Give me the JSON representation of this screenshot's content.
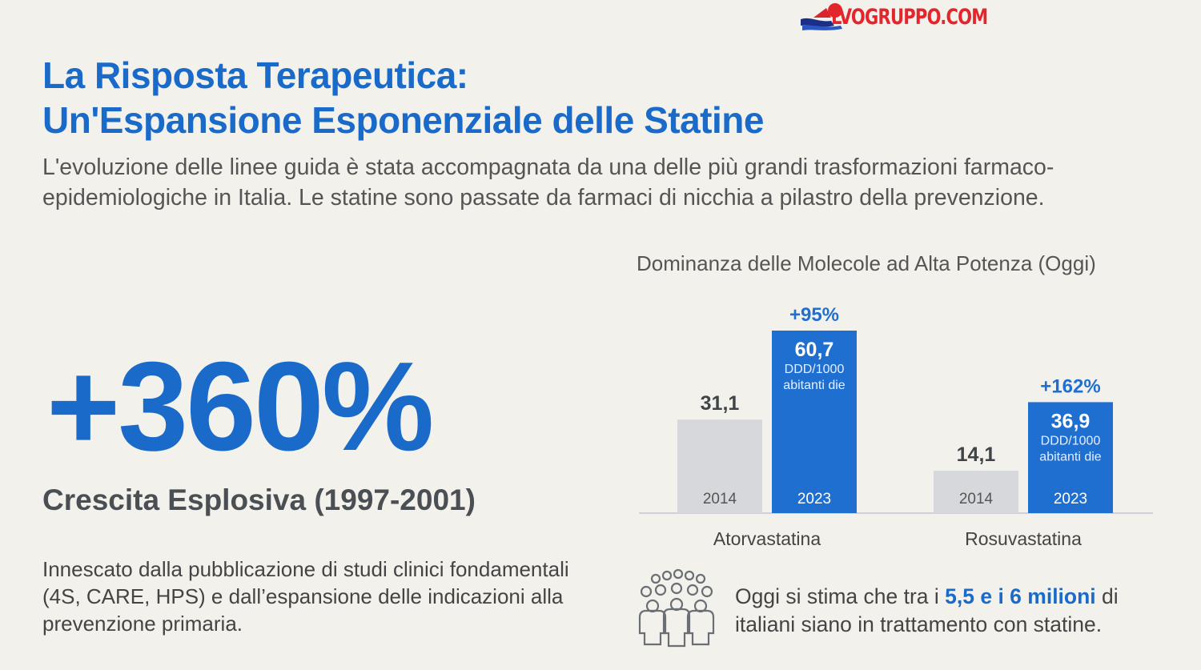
{
  "logo": {
    "text": "LVOGRUPPO.COM"
  },
  "title": {
    "line1": "La Risposta Terapeutica:",
    "line2": "Un'Espansione Esponenziale delle Statine"
  },
  "subtitle": "L'evoluzione delle linee guida è stata accompagnata da una delle più grandi trasformazioni farmaco-epidemiologiche in Italia. Le statine sono passate da farmaci di nicchia a pilastro della prevenzione.",
  "stat": {
    "value": "+360%",
    "label": "Crescita Esplosiva (1997-2001)",
    "description": "Innescato dalla pubblicazione di studi clinici fondamentali (4S, CARE, HPS) e dall’espansione delle indicazioni alla prevenzione primaria."
  },
  "chart_data": {
    "type": "bar",
    "title": "Dominanza delle Molecole ad Alta Potenza (Oggi)",
    "categories": [
      "Atorvastatina",
      "Rosuvastatina"
    ],
    "series": [
      {
        "name": "2014",
        "values": [
          31.1,
          14.1
        ],
        "value_labels": [
          "31,1",
          "14,1"
        ]
      },
      {
        "name": "2023",
        "values": [
          60.7,
          36.9
        ],
        "value_labels": [
          "60,7",
          "36,9"
        ]
      }
    ],
    "unit_label_line1": "DDD/1000",
    "unit_label_line2": "abitanti die",
    "growth_labels": [
      "+95%",
      "+162%"
    ],
    "ylim": [
      0,
      60.7
    ],
    "colors": {
      "2014": "#d6d8dc",
      "2023": "#1f6fd1"
    },
    "grid": false,
    "legend": "none"
  },
  "footer": {
    "icon": "people-group-icon",
    "text_before": "Oggi si stima che tra i ",
    "highlight": "5,5 e i 6 milioni",
    "text_after": " di italiani siano in trattamento con statine."
  }
}
